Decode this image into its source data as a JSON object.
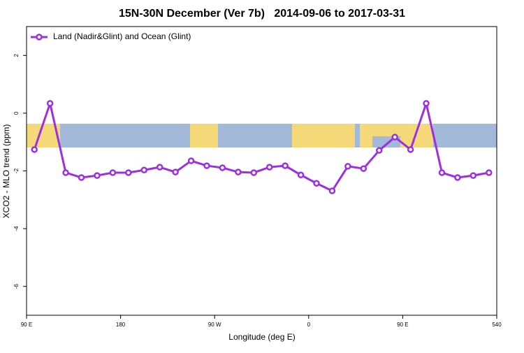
{
  "chart_data": {
    "type": "line",
    "title": "15N-30N December (Ver 7b)   2014-09-06 to 2017-03-31",
    "x_label": "Longitude (deg E)",
    "y_label": "XCO2 - MLO trend (ppm)",
    "x": [
      97.5,
      112.5,
      127.5,
      142.5,
      157.5,
      172.5,
      187.5,
      202.5,
      217.5,
      232.5,
      247.5,
      262.5,
      277.5,
      292.5,
      307.5,
      322.5,
      337.5,
      352.5,
      367.5,
      382.5,
      397.5,
      412.5,
      427.5,
      442.5,
      457.5,
      472.5,
      487.5,
      502.5,
      517.5,
      532.5
    ],
    "series": [
      {
        "name": "Land (Nadir&Glint) and Ocean (Glint)",
        "color": "#9b30e0",
        "values": [
          -1.26,
          0.34,
          -2.06,
          -2.23,
          -2.16,
          -2.06,
          -2.06,
          -1.97,
          -1.87,
          -2.04,
          -1.65,
          -1.82,
          -1.89,
          -2.04,
          -2.06,
          -1.87,
          -1.82,
          -2.14,
          -2.43,
          -2.69,
          -1.84,
          -1.92,
          -1.29,
          -0.83,
          -1.26,
          0.34,
          -2.06,
          -2.23,
          -2.16,
          -2.06
        ]
      }
    ],
    "xlim": [
      90,
      540
    ],
    "xticks": [
      {
        "value": 90,
        "label": "90 E"
      },
      180,
      {
        "value": 270,
        "label": "90 W"
      },
      {
        "value": 360,
        "label": "0"
      },
      {
        "value": 450,
        "label": "90 E"
      },
      540
    ],
    "ylim": [
      -7,
      3
    ],
    "yticks": [
      -6,
      -4,
      -2,
      0,
      2
    ],
    "legend": "top-left"
  }
}
